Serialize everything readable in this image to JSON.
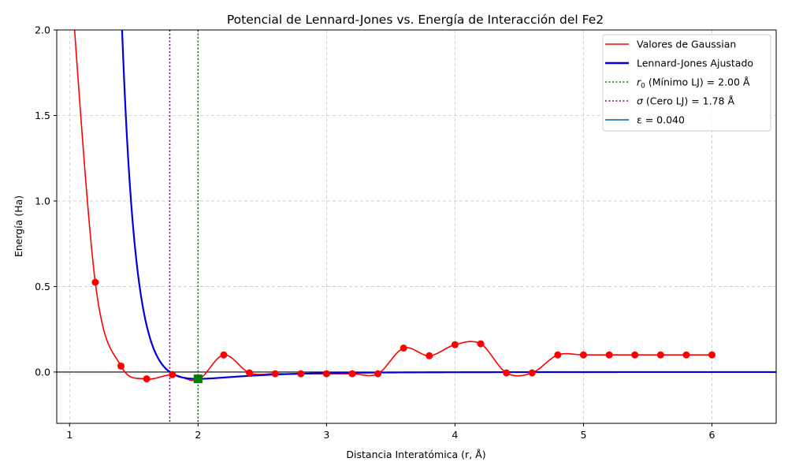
{
  "chart_data": {
    "type": "line",
    "title": "Potencial de Lennard-Jones vs. Energía de Interacción del Fe2",
    "xlabel": "Distancia Interatómica (r, Å)",
    "ylabel": "Energía (Ha)",
    "xlim": [
      0.9,
      6.5
    ],
    "ylim": [
      -0.3,
      2.0
    ],
    "xticks": [
      1,
      2,
      3,
      4,
      5,
      6
    ],
    "xtick_labels": [
      "1",
      "2",
      "3",
      "4",
      "5",
      "6"
    ],
    "yticks": [
      0.0,
      0.5,
      1.0,
      1.5,
      2.0
    ],
    "ytick_labels": [
      "0.0",
      "0.5",
      "1.0",
      "1.5",
      "2.0"
    ],
    "grid": true,
    "legend_position": "top-right",
    "colors": {
      "gaussian": "#ff0000",
      "lj": "#0000e0",
      "r0_line": "#008000",
      "sigma_line": "#800080",
      "epsilon": "#1f77b4",
      "min_marker": "#008000",
      "zero_line": "#000000"
    },
    "series": [
      {
        "name": "Valores de Gaussian",
        "x": [
          1.2,
          1.4,
          1.6,
          1.8,
          2.0,
          2.2,
          2.4,
          2.6,
          2.8,
          3.0,
          3.2,
          3.4,
          3.6,
          3.8,
          4.0,
          4.2,
          4.4,
          4.6,
          4.8,
          5.0,
          5.2,
          5.4,
          5.6,
          5.8,
          6.0
        ],
        "y": [
          0.525,
          0.035,
          -0.04,
          -0.015,
          -0.045,
          0.1,
          -0.005,
          -0.01,
          -0.01,
          -0.01,
          -0.01,
          -0.01,
          0.14,
          0.095,
          0.16,
          0.165,
          -0.005,
          -0.005,
          0.1,
          0.1,
          0.1,
          0.1,
          0.1,
          0.1,
          0.1
        ]
      },
      {
        "name": "Lennard-Jones Ajustado",
        "epsilon": 0.04,
        "sigma": 1.78
      }
    ],
    "legend": [
      {
        "label_pre": "Valores de Gaussian",
        "label_var": "",
        "label_sub": "",
        "label_post": ""
      },
      {
        "label_pre": "Lennard-Jones Ajustado",
        "label_var": "",
        "label_sub": "",
        "label_post": ""
      },
      {
        "label_pre": "",
        "label_var": "r",
        "label_sub": "0",
        "label_post": " (Mínimo LJ) = 2.00 Å"
      },
      {
        "label_pre": "",
        "label_var": "σ",
        "label_sub": "",
        "label_post": " (Cero LJ) = 1.78 Å"
      },
      {
        "label_pre": "ε = 0.040",
        "label_var": "",
        "label_sub": "",
        "label_post": ""
      }
    ],
    "annotations": {
      "r0": 2.0,
      "sigma": 1.78,
      "min_point": {
        "x": 2.0,
        "y": -0.04
      }
    }
  }
}
